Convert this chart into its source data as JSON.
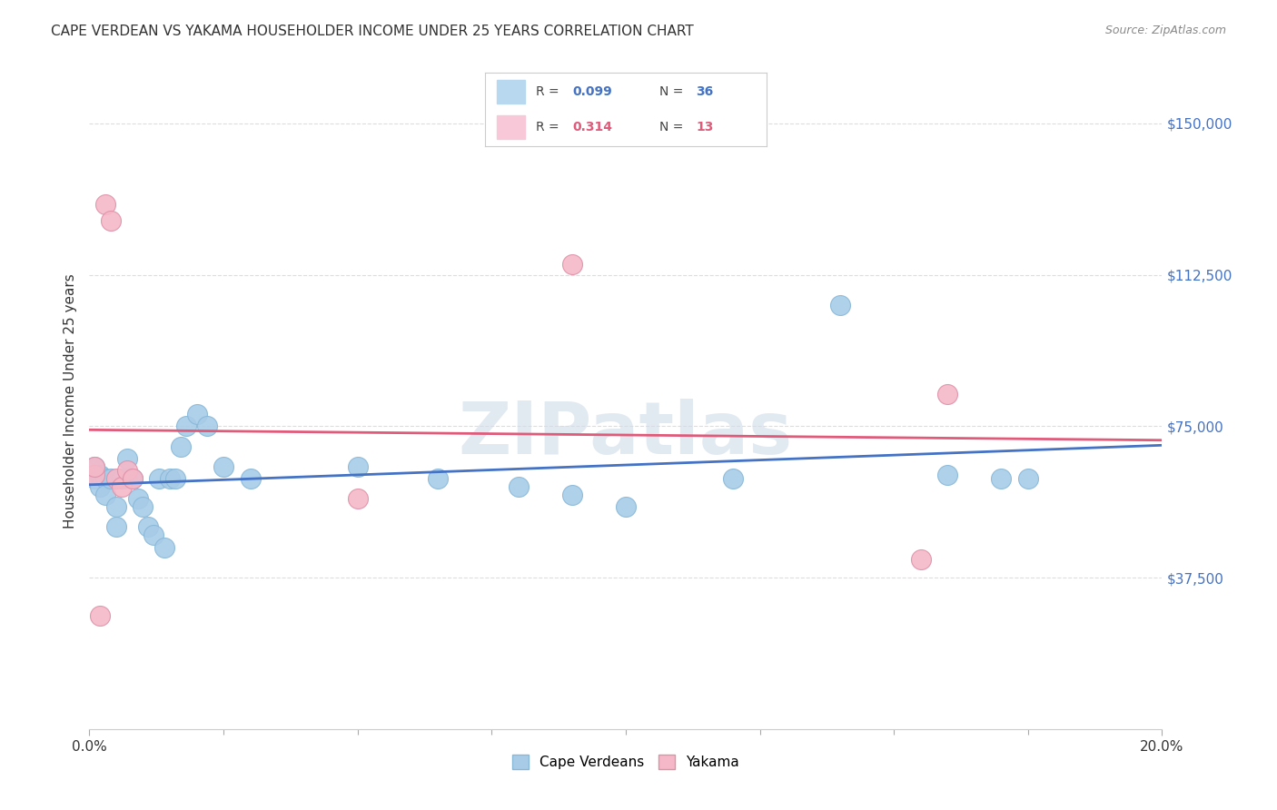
{
  "title": "CAPE VERDEAN VS YAKAMA HOUSEHOLDER INCOME UNDER 25 YEARS CORRELATION CHART",
  "source": "Source: ZipAtlas.com",
  "ylabel": "Householder Income Under 25 years",
  "xlim": [
    0.0,
    0.2
  ],
  "ylim": [
    0,
    162500
  ],
  "xtick_labels_show": [
    "0.0%",
    "20.0%"
  ],
  "xtick_vals_show": [
    0.0,
    0.2
  ],
  "xtick_minor_vals": [
    0.025,
    0.05,
    0.075,
    0.1,
    0.125,
    0.15,
    0.175
  ],
  "ytick_labels": [
    "$37,500",
    "$75,000",
    "$112,500",
    "$150,000"
  ],
  "ytick_vals": [
    37500,
    75000,
    112500,
    150000
  ],
  "grid_color": "#dddddd",
  "background_color": "#ffffff",
  "watermark_text": "ZIPatlas",
  "cape_verdean_r": "0.099",
  "cape_verdean_n": "36",
  "yakama_r": "0.314",
  "yakama_n": "13",
  "blue_scatter": "#a8cce8",
  "pink_scatter": "#f4b8c8",
  "line_blue": "#4472c4",
  "line_pink": "#e05a7a",
  "legend_box_blue": "#b8d8f0",
  "legend_box_pink": "#f8c8d8",
  "cape_verdean_x": [
    0.001,
    0.001,
    0.002,
    0.002,
    0.003,
    0.003,
    0.004,
    0.005,
    0.005,
    0.006,
    0.007,
    0.008,
    0.009,
    0.01,
    0.011,
    0.012,
    0.013,
    0.014,
    0.015,
    0.016,
    0.017,
    0.018,
    0.02,
    0.022,
    0.025,
    0.03,
    0.05,
    0.065,
    0.08,
    0.09,
    0.1,
    0.12,
    0.14,
    0.16,
    0.17,
    0.175
  ],
  "cape_verdean_y": [
    62000,
    65000,
    63000,
    60000,
    62000,
    58000,
    62000,
    55000,
    50000,
    62000,
    67000,
    62000,
    57000,
    55000,
    50000,
    48000,
    62000,
    45000,
    62000,
    62000,
    70000,
    75000,
    78000,
    75000,
    65000,
    62000,
    65000,
    62000,
    60000,
    58000,
    55000,
    62000,
    105000,
    63000,
    62000,
    62000
  ],
  "yakama_x": [
    0.001,
    0.001,
    0.002,
    0.003,
    0.004,
    0.005,
    0.006,
    0.007,
    0.008,
    0.05,
    0.09,
    0.155,
    0.16
  ],
  "yakama_y": [
    63000,
    65000,
    28000,
    130000,
    126000,
    62000,
    60000,
    64000,
    62000,
    57000,
    115000,
    42000,
    83000
  ],
  "bottom_legend_labels": [
    "Cape Verdeans",
    "Yakama"
  ]
}
